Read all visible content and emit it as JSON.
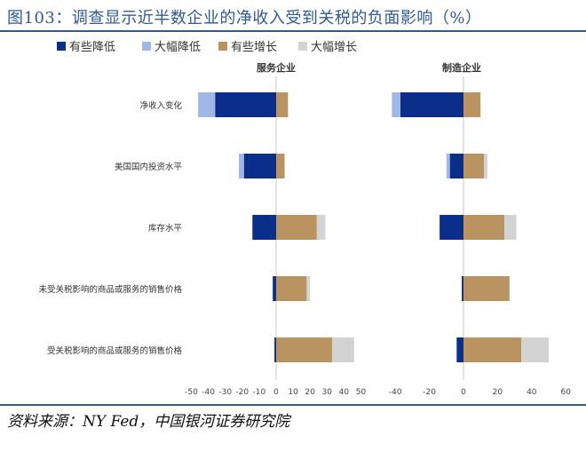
{
  "page": {
    "title": "图103：调查显示近半数企业的净收入受到关税的负面影响（%）",
    "source": "资料来源：NY Fed，中国银河证券研究院"
  },
  "chart_data": {
    "type": "bar",
    "orientation": "horizontal",
    "stacked": "diverging",
    "legend": {
      "position": "top-left",
      "items": [
        {
          "name": "有些降低",
          "color": "#0a2e8a"
        },
        {
          "name": "大幅降低",
          "color": "#9fb8e6"
        },
        {
          "name": "有些增长",
          "color": "#b99461"
        },
        {
          "name": "大幅增长",
          "color": "#d3d3d3"
        }
      ]
    },
    "categories": [
      "净收入变化",
      "美国国内投资水平",
      "库存水平",
      "未受关税影响的商品或服务的销售价格",
      "受关税影响的商品或服务的销售价格"
    ],
    "panels": [
      {
        "title": "服务企业",
        "xlim": [
          -50,
          50
        ],
        "ticks": [
          -50,
          -40,
          -30,
          -20,
          -10,
          0,
          10,
          20,
          30,
          40,
          50
        ],
        "series": [
          {
            "name": "有些降低",
            "values": [
              -36,
              -19,
              -14,
              -2,
              -1
            ]
          },
          {
            "name": "大幅降低",
            "values": [
              -10,
              -3,
              0,
              0,
              0
            ]
          },
          {
            "name": "有些增长",
            "values": [
              7,
              5,
              24,
              18,
              33
            ]
          },
          {
            "name": "大幅增长",
            "values": [
              0,
              0,
              5,
              2,
              13
            ]
          }
        ]
      },
      {
        "title": "制造企业",
        "xlim": [
          -40,
          60
        ],
        "ticks": [
          -40,
          -20,
          0,
          20,
          40,
          60
        ],
        "series": [
          {
            "name": "有些降低",
            "values": [
              -37,
              -8,
              -14,
              -1,
              -4
            ]
          },
          {
            "name": "大幅降低",
            "values": [
              -5,
              -2,
              0,
              0,
              0
            ]
          },
          {
            "name": "有些增长",
            "values": [
              10,
              12,
              24,
              27,
              34
            ]
          },
          {
            "name": "大幅增长",
            "values": [
              0,
              2,
              7,
              0,
              16
            ]
          }
        ]
      }
    ]
  }
}
